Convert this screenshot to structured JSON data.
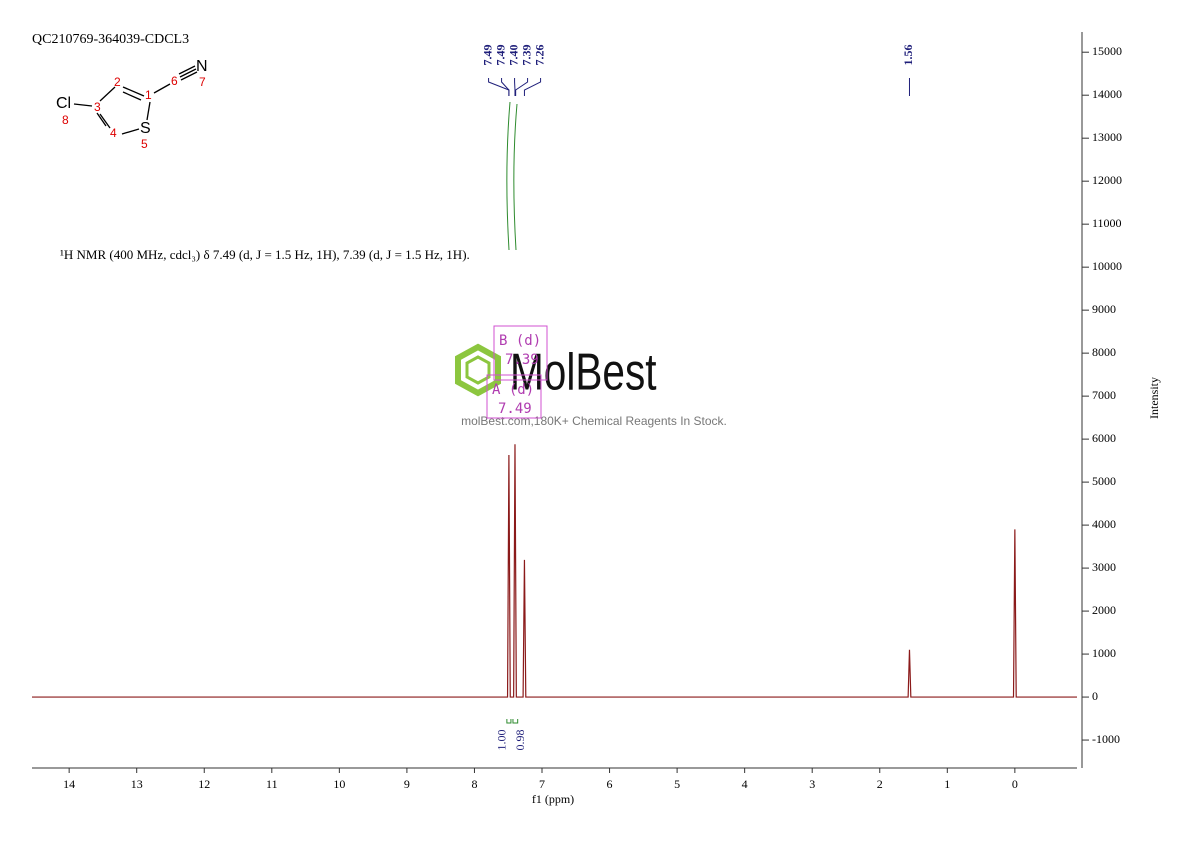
{
  "chart_data": {
    "type": "line",
    "title": "QC210769-364039-CDCL3",
    "description": "¹H NMR (400 MHz, cdcl₃) δ 7.49 (d, J = 1.5 Hz, 1H), 7.39 (d, J = 1.5 Hz, 1H).",
    "x_label": "f1 (ppm)",
    "y_label": "Intensity",
    "x": [
      14.55,
      7.51,
      7.49,
      7.47,
      7.42,
      7.4,
      7.38,
      7.28,
      7.26,
      7.24,
      1.58,
      1.56,
      1.54,
      0.02,
      0,
      -0.02,
      -0.92
    ],
    "series": [
      {
        "color": "#8b1a1a",
        "values": [
          0,
          0,
          5630,
          0,
          0,
          5880,
          0,
          0,
          3190,
          0,
          0,
          1100,
          0,
          0,
          3900,
          0,
          0
        ]
      }
    ],
    "xlim": [
      14.55,
      -0.92
    ],
    "xticks": [
      14,
      13,
      12,
      11,
      10,
      9,
      8,
      7,
      6,
      5,
      4,
      3,
      2,
      1,
      0
    ],
    "ylim": [
      -1650,
      15470
    ],
    "yticks": [
      -1000,
      0,
      1000,
      2000,
      3000,
      4000,
      5000,
      6000,
      7000,
      8000,
      9000,
      10000,
      11000,
      12000,
      13000,
      14000,
      15000
    ],
    "peak_labels": [
      {
        "value": 7.49,
        "label": "7.49"
      },
      {
        "value": 7.49,
        "label": "7.49"
      },
      {
        "value": 7.4,
        "label": "7.40"
      },
      {
        "value": 7.39,
        "label": "7.39"
      },
      {
        "value": 7.26,
        "label": "7.26"
      },
      {
        "value": 1.56,
        "label": "1.56"
      }
    ],
    "peak_label_color": "#1f1f7a",
    "integrals": [
      {
        "value": 1,
        "label": "1.00",
        "range": [
          7.52,
          7.46
        ]
      },
      {
        "value": 0.98,
        "label": "0.98",
        "range": [
          7.43,
          7.36
        ]
      }
    ],
    "integral_color": "#2e8b2e",
    "multiplets": [
      {
        "name": "B (d)",
        "shift": "7.39"
      },
      {
        "name": "A (d)",
        "shift": "7.49"
      }
    ],
    "structure": {
      "atoms": [
        "Cl",
        "8",
        "3",
        "2",
        "1",
        "6",
        "N",
        "7",
        "4",
        "S",
        "5"
      ]
    },
    "watermark": {
      "brand": "MolBest",
      "tagline": "molBest.com,180K+ Chemical Reagents In Stock."
    }
  }
}
